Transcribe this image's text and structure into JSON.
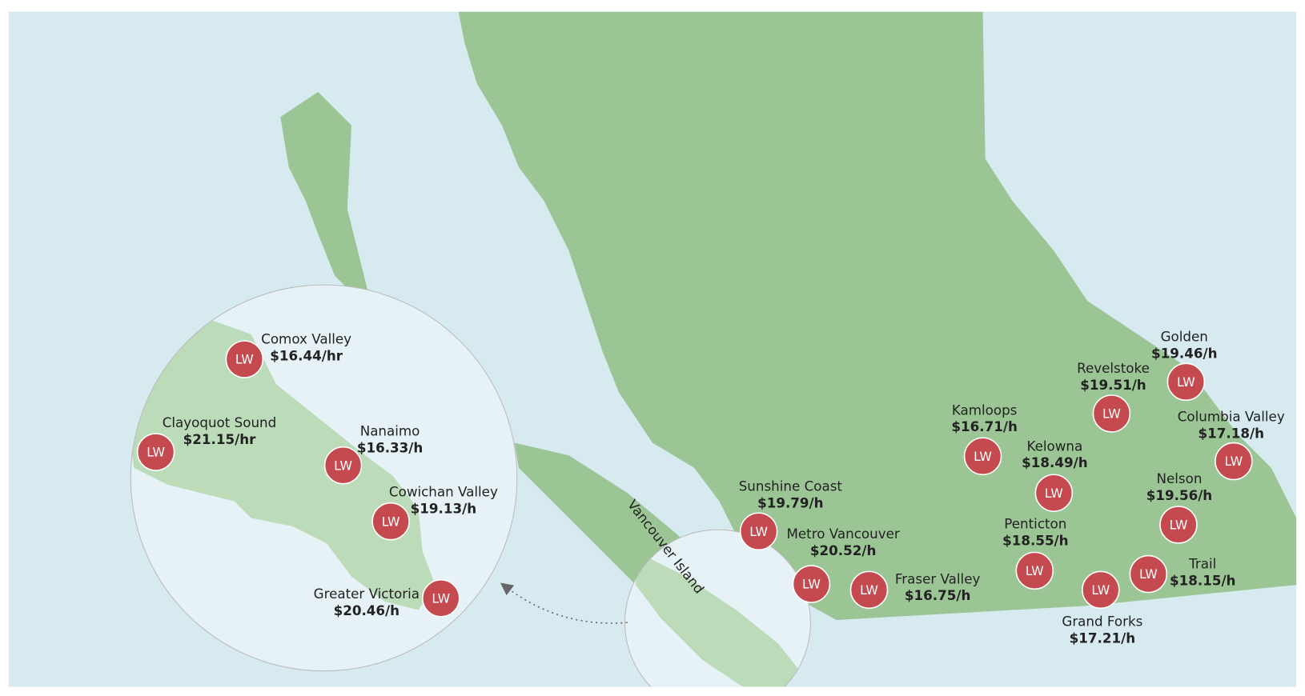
{
  "badge": "LW",
  "island_label": "Vancouver Island",
  "locations": [
    {
      "name": "Comox Valley",
      "wage": "$16.44/hr"
    },
    {
      "name": "Clayoquot Sound",
      "wage": "$21.15/hr"
    },
    {
      "name": "Nanaimo",
      "wage": "$16.33/h"
    },
    {
      "name": "Cowichan Valley",
      "wage": "$19.13/h"
    },
    {
      "name": "Greater Victoria",
      "wage": "$20.46/h"
    },
    {
      "name": "Sunshine Coast",
      "wage": "$19.79/h"
    },
    {
      "name": "Metro Vancouver",
      "wage": "$20.52/h"
    },
    {
      "name": "Fraser Valley",
      "wage": "$16.75/h"
    },
    {
      "name": "Kamloops",
      "wage": "$16.71/h"
    },
    {
      "name": "Kelowna",
      "wage": "$18.49/h"
    },
    {
      "name": "Penticton",
      "wage": "$18.55/h"
    },
    {
      "name": "Grand Forks",
      "wage": "$17.21/h"
    },
    {
      "name": "Trail",
      "wage": "$18.15/h"
    },
    {
      "name": "Nelson",
      "wage": "$19.56/h"
    },
    {
      "name": "Revelstoke",
      "wage": "$19.51/h"
    },
    {
      "name": "Golden",
      "wage": "$19.46/h"
    },
    {
      "name": "Columbia Valley",
      "wage": "$17.18/h"
    }
  ]
}
